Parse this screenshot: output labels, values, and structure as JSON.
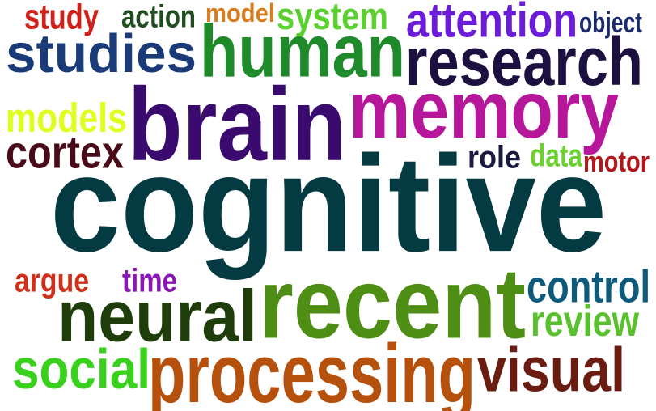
{
  "word_cloud": {
    "words": [
      {
        "text": "study",
        "color": "#d0201a"
      },
      {
        "text": "action",
        "color": "#1f4d1f"
      },
      {
        "text": "model",
        "color": "#d97c1e"
      },
      {
        "text": "system",
        "color": "#5ad12e"
      },
      {
        "text": "attention",
        "color": "#6a1cd6"
      },
      {
        "text": "object",
        "color": "#1a2a6e"
      },
      {
        "text": "studies",
        "color": "#1b3b78"
      },
      {
        "text": "human",
        "color": "#1f8a2a"
      },
      {
        "text": "research",
        "color": "#1c1040"
      },
      {
        "text": "models",
        "color": "#dfff1e"
      },
      {
        "text": "brain",
        "color": "#3a0a6e"
      },
      {
        "text": "memory",
        "color": "#b5169a"
      },
      {
        "text": "cortex",
        "color": "#4a0a1a"
      },
      {
        "text": "role",
        "color": "#1c1a40"
      },
      {
        "text": "data",
        "color": "#6bd12e"
      },
      {
        "text": "motor",
        "color": "#b5161a"
      },
      {
        "text": "cognitive",
        "color": "#043a42"
      },
      {
        "text": "argue",
        "color": "#d0301a"
      },
      {
        "text": "time",
        "color": "#8a16b5"
      },
      {
        "text": "control",
        "color": "#0d5a7a"
      },
      {
        "text": "neural",
        "color": "#1f3d0a"
      },
      {
        "text": "recent",
        "color": "#4f8e14"
      },
      {
        "text": "review",
        "color": "#5ac12e"
      },
      {
        "text": "social",
        "color": "#3ad11e"
      },
      {
        "text": "processing",
        "color": "#b5500d"
      },
      {
        "text": "visual",
        "color": "#6a1c10"
      }
    ]
  }
}
